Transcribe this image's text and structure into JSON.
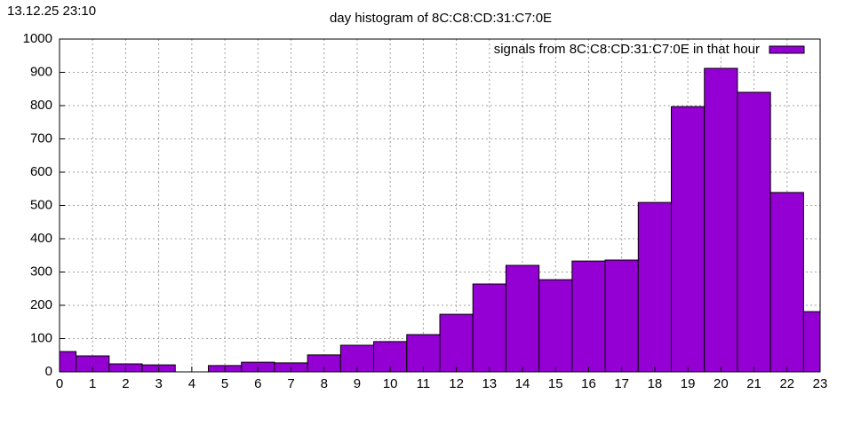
{
  "timestamp": "13.12.25 23:10",
  "chart_data": {
    "type": "bar",
    "title": "day histogram of 8C:C8:CD:31:C7:0E",
    "x": [
      0,
      1,
      2,
      3,
      4,
      5,
      6,
      7,
      8,
      9,
      10,
      11,
      12,
      13,
      14,
      15,
      16,
      17,
      18,
      19,
      20,
      21,
      22,
      23
    ],
    "series": [
      {
        "name": "signals from 8C:C8:CD:31:C7:0E in that hour",
        "color": "#9400d3",
        "values": [
          61,
          48,
          24,
          21,
          0,
          19,
          29,
          27,
          51,
          80,
          91,
          112,
          173,
          264,
          320,
          277,
          333,
          336,
          509,
          797,
          912,
          840,
          539,
          181
        ]
      }
    ],
    "xlim": [
      0,
      23
    ],
    "xticks": [
      0,
      1,
      2,
      3,
      4,
      5,
      6,
      7,
      8,
      9,
      10,
      11,
      12,
      13,
      14,
      15,
      16,
      17,
      18,
      19,
      20,
      21,
      22,
      23
    ],
    "ylim": [
      0,
      1000
    ],
    "yticks": [
      0,
      100,
      200,
      300,
      400,
      500,
      600,
      700,
      800,
      900,
      1000
    ],
    "grid": true,
    "legend": "top-right"
  }
}
